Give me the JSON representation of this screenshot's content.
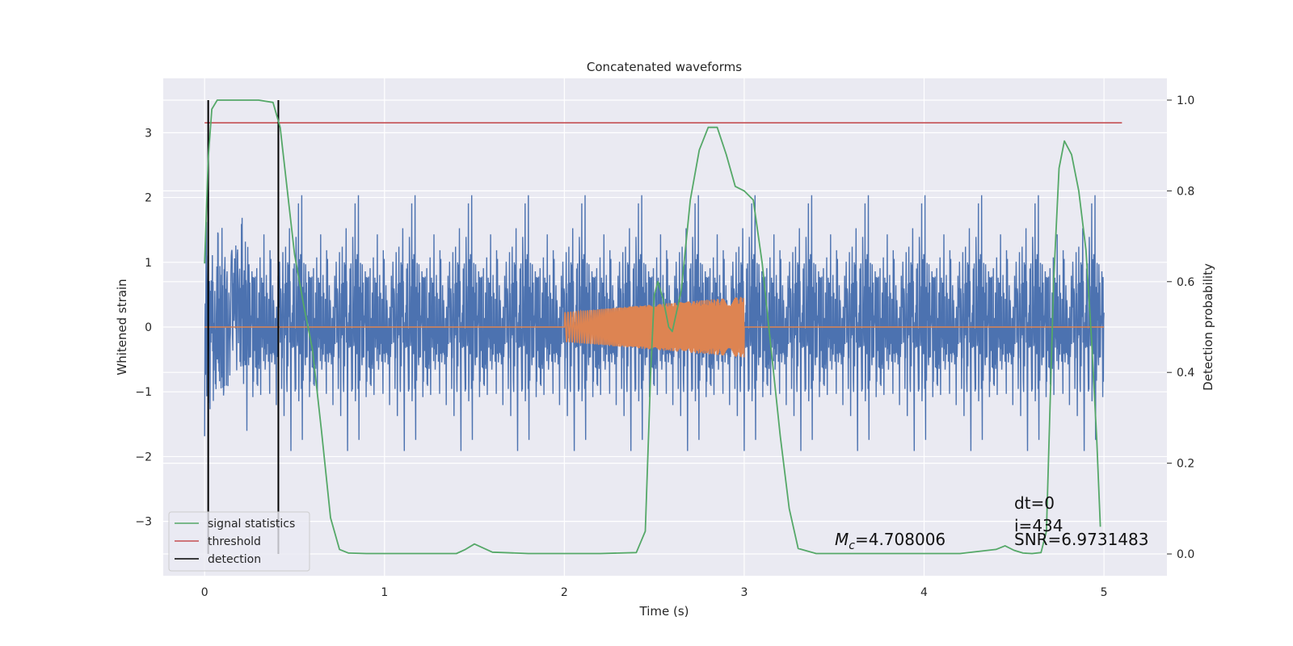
{
  "chart_data": {
    "type": "line",
    "title": "Concatenated waveforms",
    "xlabel": "Time (s)",
    "ylabel": "Whitened strain",
    "y2label": "Detection probability",
    "xlim": [
      -0.23,
      5.35
    ],
    "ylim": [
      -3.84,
      3.84
    ],
    "y2lim": [
      -0.048,
      1.048
    ],
    "xticks": [
      0,
      1,
      2,
      3,
      4,
      5
    ],
    "yticks": [
      -3,
      -2,
      -1,
      0,
      1,
      2,
      3
    ],
    "y2ticks": [
      0.0,
      0.2,
      0.4,
      0.6,
      0.8,
      1.0
    ],
    "grid": true,
    "background": "#EAEAF2",
    "legend_position": "lower-left",
    "series": [
      {
        "name": "signal statistics",
        "axis": "right",
        "color": "#55A868",
        "x": [
          0.0,
          0.02,
          0.04,
          0.07,
          0.1,
          0.2,
          0.3,
          0.38,
          0.42,
          0.46,
          0.5,
          0.55,
          0.6,
          0.65,
          0.7,
          0.75,
          0.8,
          0.9,
          1.0,
          1.2,
          1.4,
          1.45,
          1.5,
          1.6,
          1.8,
          2.0,
          2.2,
          2.4,
          2.45,
          2.48,
          2.5,
          2.52,
          2.55,
          2.58,
          2.6,
          2.65,
          2.7,
          2.75,
          2.8,
          2.85,
          2.9,
          2.95,
          3.0,
          3.05,
          3.1,
          3.15,
          3.2,
          3.25,
          3.3,
          3.4,
          3.6,
          3.8,
          4.0,
          4.2,
          4.4,
          4.45,
          4.5,
          4.55,
          4.6,
          4.65,
          4.68,
          4.72,
          4.75,
          4.78,
          4.82,
          4.86,
          4.9,
          4.93,
          4.96,
          4.98
        ],
        "values": [
          0.64,
          0.87,
          0.98,
          1.0,
          1.0,
          1.0,
          1.0,
          0.995,
          0.94,
          0.8,
          0.66,
          0.55,
          0.45,
          0.27,
          0.08,
          0.01,
          0.002,
          0.001,
          0.001,
          0.001,
          0.001,
          0.01,
          0.022,
          0.004,
          0.001,
          0.001,
          0.001,
          0.003,
          0.05,
          0.4,
          0.57,
          0.6,
          0.56,
          0.5,
          0.49,
          0.58,
          0.78,
          0.89,
          0.94,
          0.94,
          0.88,
          0.81,
          0.8,
          0.78,
          0.64,
          0.45,
          0.26,
          0.1,
          0.012,
          0.001,
          0.001,
          0.001,
          0.001,
          0.001,
          0.01,
          0.018,
          0.008,
          0.002,
          0.001,
          0.003,
          0.05,
          0.6,
          0.85,
          0.91,
          0.88,
          0.8,
          0.67,
          0.48,
          0.25,
          0.06
        ]
      },
      {
        "name": "threshold",
        "axis": "right",
        "color": "#C44E52",
        "x": [
          0.0,
          5.1
        ],
        "values": [
          0.95,
          0.95
        ]
      },
      {
        "name": "detection",
        "axis": "left",
        "color": "#000000",
        "x": [
          0.02,
          0.41
        ],
        "values": [
          0.0,
          0.0
        ]
      },
      {
        "name": "",
        "axis": "left",
        "color": "#4C72B0",
        "kind": "noise",
        "x_range": [
          0.0,
          5.0
        ],
        "std": 0.7
      },
      {
        "name": "",
        "axis": "left",
        "color": "#DD8452",
        "kind": "chirp",
        "x_range": [
          0.0,
          5.0
        ],
        "chirp_range": [
          2.0,
          3.0
        ],
        "amplitude_start": 0.23,
        "amplitude_end": 0.47
      }
    ],
    "annotations": [
      "dt=0",
      "i=434",
      "SNR=6.9731483",
      "=4.708006"
    ],
    "annotation_symbol": "M",
    "annotation_subscript": "c"
  }
}
